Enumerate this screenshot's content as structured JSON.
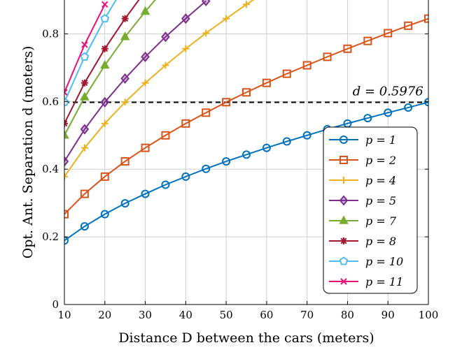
{
  "chart_data": {
    "type": "line",
    "xlabel": "Distance D between the cars (meters)",
    "ylabel": "Opt. Ant. Separation d (meters)",
    "xlim": [
      10,
      100
    ],
    "ylim": [
      0,
      0.9
    ],
    "xticks": [
      10,
      20,
      30,
      40,
      50,
      60,
      70,
      80,
      90,
      100
    ],
    "yticks": [
      0,
      0.2,
      0.4,
      0.6,
      0.8
    ],
    "ytick_labels": [
      "0",
      "0.2",
      "0.4",
      "0.6",
      "0.8"
    ],
    "grid": true,
    "legend_position": "lower-right",
    "reference_line": {
      "y": 0.5976,
      "label": "d = 0.5976",
      "style": "dashed",
      "color": "#000000"
    },
    "series": [
      {
        "name": "p = 1",
        "color": "#0072BD",
        "marker": "circle",
        "x": [
          10,
          15,
          20,
          25,
          30,
          35,
          40,
          45,
          50,
          55,
          60,
          65,
          70,
          75,
          80,
          85,
          90,
          95,
          100
        ],
        "y": [
          0.189,
          0.231,
          0.267,
          0.299,
          0.327,
          0.354,
          0.378,
          0.401,
          0.423,
          0.443,
          0.463,
          0.482,
          0.5,
          0.518,
          0.535,
          0.551,
          0.567,
          0.582,
          0.598
        ]
      },
      {
        "name": "p = 2",
        "color": "#D95319",
        "marker": "square",
        "x": [
          10,
          15,
          20,
          25,
          30,
          35,
          40,
          45,
          50,
          55,
          60,
          65,
          70,
          75,
          80,
          85,
          90,
          95,
          100
        ],
        "y": [
          0.267,
          0.327,
          0.378,
          0.423,
          0.463,
          0.5,
          0.535,
          0.567,
          0.598,
          0.627,
          0.655,
          0.682,
          0.707,
          0.732,
          0.756,
          0.779,
          0.802,
          0.824,
          0.845
        ]
      },
      {
        "name": "p = 4",
        "color": "#EDB120",
        "marker": "plus",
        "x": [
          10,
          15,
          20,
          25,
          30,
          35,
          40,
          45,
          50,
          55,
          60
        ],
        "y": [
          0.378,
          0.463,
          0.535,
          0.598,
          0.655,
          0.707,
          0.756,
          0.802,
          0.845,
          0.887,
          0.926
        ]
      },
      {
        "name": "p = 5",
        "color": "#7E2F8E",
        "marker": "diamond",
        "x": [
          10,
          15,
          20,
          25,
          30,
          35,
          40,
          45
        ],
        "y": [
          0.423,
          0.518,
          0.598,
          0.668,
          0.732,
          0.791,
          0.845,
          0.897
        ]
      },
      {
        "name": "p = 7",
        "color": "#77AC30",
        "marker": "triangle",
        "x": [
          10,
          15,
          20,
          25,
          30,
          35
        ],
        "y": [
          0.5,
          0.613,
          0.707,
          0.791,
          0.866,
          0.936
        ]
      },
      {
        "name": "p = 8",
        "color": "#A2142F",
        "marker": "asterisk",
        "x": [
          10,
          15,
          20,
          25,
          30
        ],
        "y": [
          0.535,
          0.655,
          0.756,
          0.845,
          0.926
        ]
      },
      {
        "name": "p = 10",
        "color": "#4DBEEE",
        "marker": "pentagon",
        "x": [
          10,
          15,
          20,
          25
        ],
        "y": [
          0.598,
          0.732,
          0.845,
          0.945
        ]
      },
      {
        "name": "p = 11",
        "color": "#E6127A",
        "marker": "x",
        "x": [
          10,
          15,
          20
        ],
        "y": [
          0.627,
          0.768,
          0.887
        ]
      }
    ]
  }
}
